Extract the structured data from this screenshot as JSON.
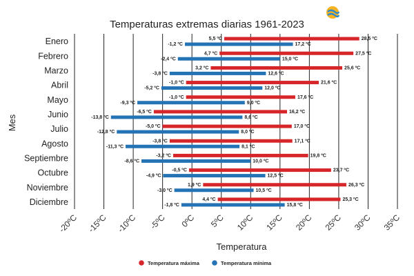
{
  "chart_data": {
    "type": "bar",
    "orientation": "horizontal",
    "title": "Temperaturas extremas diarias 1961-2023",
    "xlabel": "Temperatura",
    "ylabel": "Mes",
    "xlim": [
      -20,
      35
    ],
    "x_ticks": [
      -20,
      -15,
      -10,
      -5,
      0,
      5,
      10,
      15,
      20,
      25,
      30,
      35
    ],
    "x_tick_labels": [
      "-20ºC",
      "-15ºC",
      "-10ºC",
      "-5ºC",
      "0ºC",
      "5ºC",
      "10ºC",
      "15ºC",
      "20ºC",
      "25ºC",
      "30ºC",
      "35ºC"
    ],
    "grid": true,
    "legend_position": "bottom",
    "categories": [
      "Enero",
      "Febrero",
      "Marzo",
      "Abril",
      "Mayo",
      "Junio",
      "Julio",
      "Agosto",
      "Septiembre",
      "Octubre",
      "Noviembre",
      "Diciembre"
    ],
    "series": [
      {
        "name": "Temperatura máxima",
        "color": "#d7262a",
        "low": [
          5.5,
          4.7,
          3.2,
          -1.0,
          -1.0,
          -6.5,
          -5.0,
          -3.8,
          -3.2,
          -0.5,
          1.9,
          4.4
        ],
        "high": [
          28.5,
          27.5,
          25.6,
          21.6,
          17.6,
          16.2,
          17.0,
          17.1,
          19.8,
          23.7,
          26.3,
          25.3
        ],
        "low_labels": [
          "5,5 ºC",
          "4,7 ºC",
          "3,2 ºC",
          "-1,0 ºC",
          "-1,0 ºC",
          "-6,5 ºC",
          "-5,0 ºC",
          "-3,8 ºC",
          "-3,2 ºC",
          "-0,5 ºC",
          "1,9 ºC",
          "4,4 ºC"
        ],
        "high_labels": [
          "28,5 ºC",
          "27,5 ºC",
          "25,6 ºC",
          "21,6 ºC",
          "17,6 ºC",
          "16,2 ºC",
          "17,0 ºC",
          "17,1 ºC",
          "19,8 ºC",
          "23,7 ºC",
          "26,3 ºC",
          "25,3 ºC"
        ]
      },
      {
        "name": "Temperatura mínima",
        "color": "#2474b5",
        "low": [
          -1.2,
          -2.4,
          -3.8,
          -5.2,
          -9.3,
          -13.8,
          -12.8,
          -11.3,
          -8.6,
          -4.9,
          -3.0,
          -1.8
        ],
        "high": [
          17.2,
          15.0,
          12.6,
          12.0,
          9.0,
          8.6,
          8.0,
          8.1,
          10.0,
          12.5,
          10.5,
          15.8
        ],
        "low_labels": [
          "-1,2 ºC",
          "-2,4 ºC",
          "-3,8 ºC",
          "-5,2 ºC",
          "-9,3 ºC",
          "-13,8 ºC",
          "-12,8 ºC",
          "-11,3 ºC",
          "-8,6 ºC",
          "-4,9 ºC",
          "-3,0 ºC",
          "-1,8 ºC"
        ],
        "high_labels": [
          "17,2 ºC",
          "15,0 ºC",
          "12,6 ºC",
          "12,0 ºC",
          "9,0 ºC",
          "8,6 ºC",
          "8,0 ºC",
          "8,1 ºC",
          "10,0 ºC",
          "12,5 ºC",
          "10,5 ºC",
          "15,8 ºC"
        ]
      }
    ]
  },
  "logo": {
    "icon": "wave-sun-logo-icon",
    "colors": [
      "#f5b324",
      "#2a8bd1"
    ]
  }
}
